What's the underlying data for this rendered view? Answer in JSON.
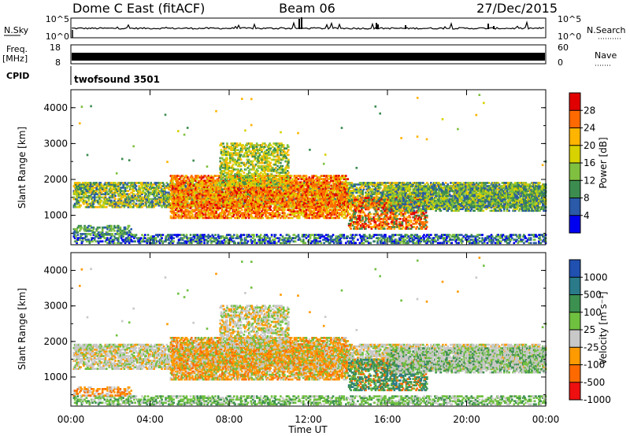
{
  "header": {
    "radar": "Dome C East (fitACF)",
    "beam": "Beam 06",
    "date": "27/Dec/2015"
  },
  "top_panel": {
    "left_label": "N.Sky",
    "right_label": "N.Search",
    "left_ticks": [
      "10^5",
      "10^0"
    ],
    "right_ticks": [
      "10^5",
      "10^0"
    ]
  },
  "freq_panel": {
    "left_label_1": "Freq.",
    "left_label_2": "[MHz]",
    "left_ticks": [
      "18",
      "8"
    ],
    "right_label": "Nave",
    "right_ticks": [
      "60",
      "0"
    ]
  },
  "cpid_panel": {
    "label": "CPID",
    "value": "twofsound 3501"
  },
  "chart_data": [
    {
      "type": "heatmap",
      "name": "power",
      "ylabel": "Slant Range [km]",
      "ylim": [
        180,
        4500
      ],
      "yticks": [
        "1000",
        "2000",
        "3000",
        "4000"
      ],
      "xlabel": "Time UT",
      "xticks": [
        "00:00",
        "04:00",
        "08:00",
        "12:00",
        "16:00",
        "20:00",
        "00:00"
      ],
      "colorbar": {
        "label": "Power [dB]",
        "ticks": [
          "28",
          "24",
          "20",
          "16",
          "12",
          "8",
          "4"
        ],
        "colors": [
          "#e00000",
          "#ff6a00",
          "#ffb400",
          "#d7d200",
          "#7fc040",
          "#3c8c50",
          "#2a5aa8",
          "#0000f0"
        ]
      }
    },
    {
      "type": "heatmap",
      "name": "velocity",
      "ylabel": "Slant Range [km]",
      "ylim": [
        180,
        4500
      ],
      "yticks": [
        "1000",
        "2000",
        "3000",
        "4000"
      ],
      "xlabel": "Time UT",
      "xticks": [
        "00:00",
        "04:00",
        "08:00",
        "12:00",
        "16:00",
        "20:00",
        "00:00"
      ],
      "colorbar": {
        "label": "Velocity [m s⁻¹]",
        "ticks": [
          "1000",
          "500",
          "100",
          "25",
          "-25",
          "-100",
          "-500",
          "-1000"
        ],
        "colors": [
          "#2050b0",
          "#2a7a8a",
          "#3c9050",
          "#70c040",
          "#c8c8c8",
          "#ff9a00",
          "#ff6a00",
          "#ee1010"
        ]
      }
    }
  ]
}
